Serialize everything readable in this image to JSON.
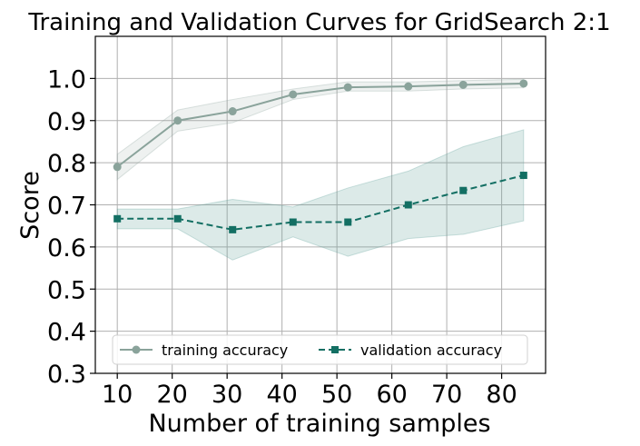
{
  "chart_data": {
    "type": "line",
    "title": "Training and Validation Curves for GridSearch 2:1",
    "xlabel": "Number of training samples",
    "ylabel": "Score",
    "xlim": [
      6,
      88
    ],
    "ylim": [
      0.3,
      1.1
    ],
    "xticks": [
      10,
      20,
      30,
      40,
      50,
      60,
      70,
      80
    ],
    "yticks": [
      0.3,
      0.4,
      0.5,
      0.6,
      0.7,
      0.8,
      0.9,
      1.0
    ],
    "xtick_labels": [
      "10",
      "20",
      "30",
      "40",
      "50",
      "60",
      "70",
      "80"
    ],
    "ytick_labels": [
      "0.3",
      "0.4",
      "0.5",
      "0.6",
      "0.7",
      "0.8",
      "0.9",
      "1.0"
    ],
    "grid": true,
    "legend_position": "lower-center",
    "x": [
      10,
      21,
      31,
      42,
      52,
      63,
      73,
      84
    ],
    "series": [
      {
        "name": "training accuracy",
        "color": "#8aa39b",
        "band_color": "#8aa39b",
        "line_style": "solid",
        "marker": "circle",
        "values": [
          0.79,
          0.9,
          0.922,
          0.962,
          0.979,
          0.981,
          0.985,
          0.988
        ],
        "upper": [
          0.82,
          0.925,
          0.95,
          0.975,
          0.992,
          0.992,
          0.995,
          0.998
        ],
        "lower": [
          0.76,
          0.875,
          0.895,
          0.95,
          0.97,
          0.97,
          0.975,
          0.978
        ]
      },
      {
        "name": "validation accuracy",
        "color": "#136f63",
        "band_color": "#5e9e97",
        "line_style": "dashed",
        "marker": "square",
        "values": [
          0.667,
          0.667,
          0.641,
          0.659,
          0.659,
          0.7,
          0.734,
          0.77
        ],
        "upper": [
          0.69,
          0.69,
          0.713,
          0.695,
          0.74,
          0.78,
          0.838,
          0.878
        ],
        "lower": [
          0.643,
          0.643,
          0.569,
          0.624,
          0.578,
          0.62,
          0.63,
          0.662
        ]
      }
    ]
  }
}
